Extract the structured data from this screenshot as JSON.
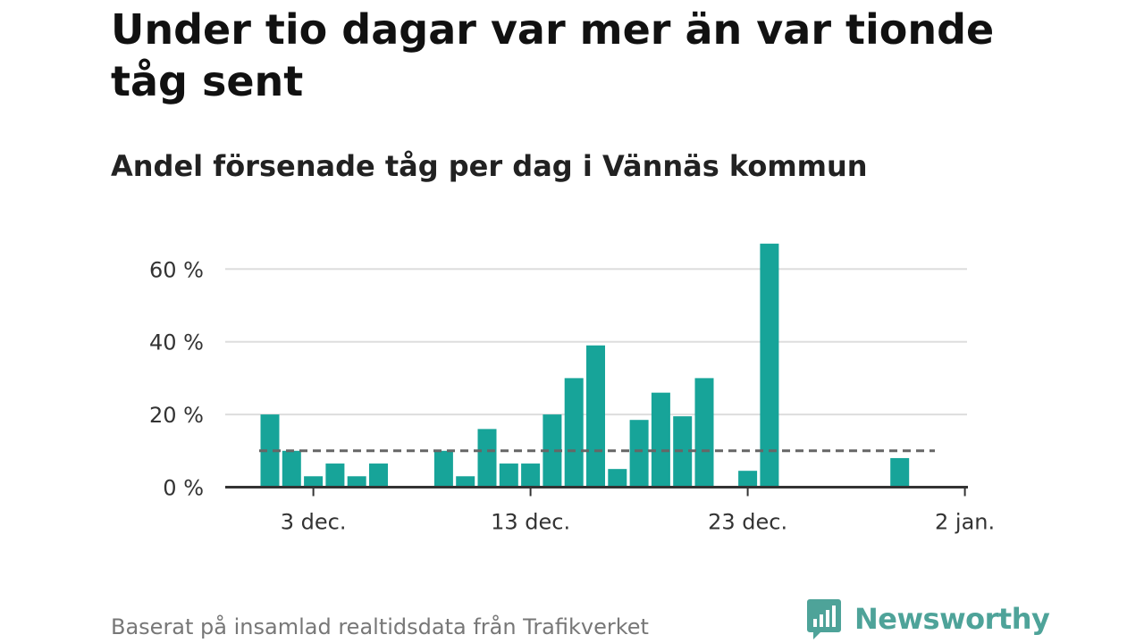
{
  "header": {
    "title": "Under tio dagar var mer än var tionde tåg sent",
    "subtitle": "Andel försenade tåg per dag i Vännäs kommun"
  },
  "footer": {
    "source": "Baserat på insamlad realtidsdata från Trafikverket",
    "brand": "Newsworthy"
  },
  "colors": {
    "bar": "#17a499",
    "reference_line": "#666666",
    "grid": "#dddddd",
    "axis": "#333333",
    "brand": "#4ea399"
  },
  "chart_data": {
    "type": "bar",
    "x": [
      "1 dec.",
      "2 dec.",
      "3 dec.",
      "4 dec.",
      "5 dec.",
      "6 dec.",
      "7 dec.",
      "8 dec.",
      "9 dec.",
      "10 dec.",
      "11 dec.",
      "12 dec.",
      "13 dec.",
      "14 dec.",
      "15 dec.",
      "16 dec.",
      "17 dec.",
      "18 dec.",
      "19 dec.",
      "20 dec.",
      "21 dec.",
      "22 dec.",
      "23 dec.",
      "24 dec.",
      "25 dec.",
      "26 dec.",
      "27 dec.",
      "28 dec.",
      "29 dec.",
      "30 dec.",
      "31 dec."
    ],
    "values": [
      20,
      10,
      3,
      6.5,
      3,
      6.5,
      null,
      null,
      10,
      3,
      16,
      6.5,
      6.5,
      20,
      30,
      39,
      5,
      18.5,
      26,
      19.5,
      30,
      null,
      4.5,
      67,
      null,
      null,
      null,
      null,
      null,
      8,
      null
    ],
    "reference_line": 10,
    "xticks": [
      "3 dec.",
      "13 dec.",
      "23 dec.",
      "2 jan."
    ],
    "xtick_dates": [
      "3 dec.",
      "13 dec.",
      "23 dec.",
      "2 jan."
    ],
    "yticks": [
      "0 %",
      "20 %",
      "40 %",
      "60 %"
    ],
    "ytick_values": [
      0,
      20,
      40,
      60
    ],
    "ylim": [
      0,
      70
    ],
    "grid": true
  }
}
